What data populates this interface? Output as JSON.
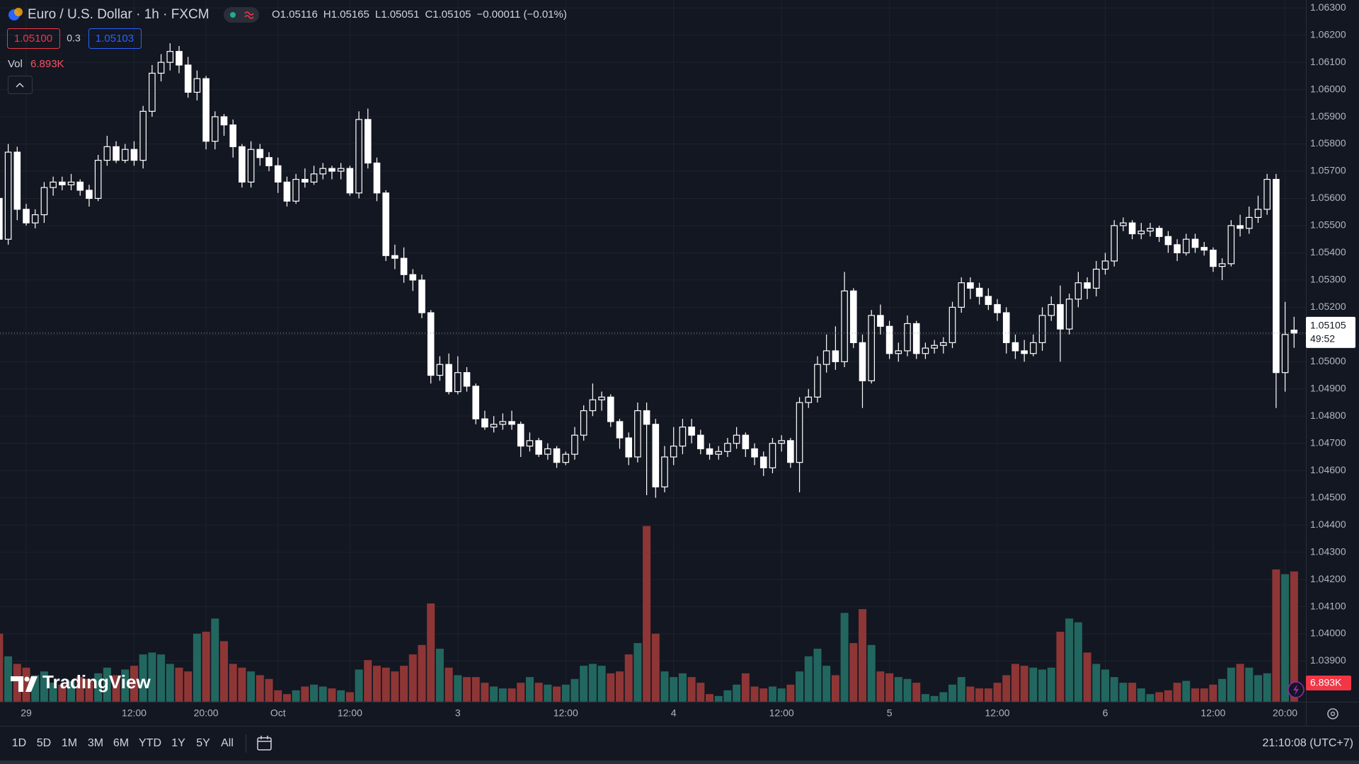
{
  "header": {
    "symbol": "Euro / U.S. Dollar · 1h · FXCM",
    "ohlc_prefixes": [
      "O",
      "H",
      "L",
      "C"
    ],
    "change": "−0.00011 (−0.01%)",
    "bid": "1.05100",
    "spread": "0.3",
    "ask": "1.05103",
    "countdown": "49:52"
  },
  "volume_legend": {
    "label": "Vol",
    "value": "6.893K"
  },
  "watermark": "TradingView",
  "toolbar": {
    "ranges": [
      "1D",
      "5D",
      "1M",
      "3M",
      "6M",
      "YTD",
      "1Y",
      "5Y",
      "All"
    ],
    "clock": "21:10:08 (UTC+7)"
  },
  "chart_data": {
    "type": "candlestick",
    "categories": [
      null,
      null,
      null,
      "29",
      null,
      null,
      null,
      null,
      null,
      null,
      null,
      null,
      null,
      null,
      null,
      "12:00",
      null,
      null,
      null,
      null,
      null,
      null,
      null,
      "20:00",
      null,
      null,
      null,
      null,
      null,
      null,
      null,
      "Oct",
      null,
      null,
      null,
      null,
      null,
      null,
      null,
      "12:00",
      null,
      null,
      null,
      null,
      null,
      null,
      null,
      null,
      null,
      null,
      null,
      "3",
      null,
      null,
      null,
      null,
      null,
      null,
      null,
      null,
      null,
      null,
      null,
      "12:00",
      null,
      null,
      null,
      null,
      null,
      null,
      null,
      null,
      null,
      null,
      null,
      "4",
      null,
      null,
      null,
      null,
      null,
      null,
      null,
      null,
      null,
      null,
      null,
      "12:00",
      null,
      null,
      null,
      null,
      null,
      null,
      null,
      null,
      null,
      null,
      null,
      "5",
      null,
      null,
      null,
      null,
      null,
      null,
      null,
      null,
      null,
      null,
      null,
      "12:00",
      null,
      null,
      null,
      null,
      null,
      null,
      null,
      null,
      null,
      null,
      null,
      "6",
      null,
      null,
      null,
      null,
      null,
      null,
      null,
      null,
      null,
      null,
      null,
      "12:00",
      null,
      null,
      null,
      null,
      null,
      null,
      null,
      "20:00",
      null
    ],
    "open": [
      1.056,
      1.0545,
      1.0577,
      1.0556,
      1.0551,
      1.0554,
      1.0564,
      1.0566,
      1.0565,
      1.0566,
      1.0563,
      1.056,
      1.0574,
      1.0579,
      1.0574,
      1.0578,
      1.0574,
      1.0592,
      1.0606,
      1.061,
      1.0614,
      1.0609,
      1.0599,
      1.0604,
      1.0581,
      1.059,
      1.0587,
      1.0579,
      1.0566,
      1.0578,
      1.0575,
      1.0572,
      1.0566,
      1.0559,
      1.0567,
      1.0566,
      1.0569,
      1.0571,
      1.057,
      1.0571,
      1.0562,
      1.0589,
      1.0573,
      1.0562,
      1.0539,
      1.0538,
      1.0532,
      1.053,
      1.0518,
      1.0495,
      1.0499,
      1.0489,
      1.0496,
      1.0491,
      1.0479,
      1.0476,
      1.0477,
      1.0478,
      1.0477,
      1.0469,
      1.0471,
      1.0466,
      1.0468,
      1.0463,
      1.0466,
      1.0473,
      1.0482,
      1.0486,
      1.0487,
      1.0478,
      1.0472,
      1.0465,
      1.0482,
      1.0477,
      1.0454,
      1.0465,
      1.0469,
      1.0476,
      1.0473,
      1.0468,
      1.0466,
      1.0467,
      1.047,
      1.0473,
      1.0468,
      1.0465,
      1.0461,
      1.047,
      1.0471,
      1.0463,
      1.0485,
      1.0487,
      1.0499,
      1.0504,
      1.05,
      1.0526,
      1.0507,
      1.0493,
      1.0517,
      1.0513,
      1.0503,
      1.0504,
      1.0514,
      1.0503,
      1.0505,
      1.0506,
      1.0507,
      1.052,
      1.0529,
      1.0527,
      1.0524,
      1.0521,
      1.0518,
      1.0507,
      1.0504,
      1.0503,
      1.0507,
      1.0517,
      1.0521,
      1.0512,
      1.0523,
      1.0529,
      1.0527,
      1.0534,
      1.0537,
      1.055,
      1.0551,
      1.0547,
      1.0548,
      1.0549,
      1.0546,
      1.0543,
      1.054,
      1.0545,
      1.0542,
      1.0541,
      1.0535,
      1.0536,
      1.055,
      1.0549,
      1.0553,
      1.0556,
      1.0567,
      1.0496,
      1.05116
    ],
    "high": [
      1.0563,
      1.058,
      1.0579,
      1.0558,
      1.0556,
      1.0566,
      1.0568,
      1.0568,
      1.0569,
      1.0567,
      1.0565,
      1.0576,
      1.0583,
      1.0581,
      1.058,
      1.0581,
      1.0594,
      1.0609,
      1.0613,
      1.0617,
      1.0616,
      1.0612,
      1.0607,
      1.0605,
      1.0592,
      1.0591,
      1.0589,
      1.058,
      1.0581,
      1.058,
      1.0577,
      1.0575,
      1.0568,
      1.0569,
      1.0571,
      1.0572,
      1.0573,
      1.0572,
      1.0573,
      1.0572,
      1.0592,
      1.0593,
      1.0575,
      1.0563,
      1.0543,
      1.0542,
      1.0534,
      1.0532,
      1.0519,
      1.0502,
      1.0503,
      1.0502,
      1.0498,
      1.0492,
      1.0482,
      1.048,
      1.0481,
      1.0482,
      1.0478,
      1.0474,
      1.0472,
      1.047,
      1.0469,
      1.0467,
      1.0476,
      1.0484,
      1.0492,
      1.0489,
      1.0488,
      1.0479,
      1.0474,
      1.0485,
      1.0485,
      1.0479,
      1.0469,
      1.0476,
      1.0479,
      1.0479,
      1.0475,
      1.047,
      1.0469,
      1.0472,
      1.0476,
      1.0474,
      1.047,
      1.0467,
      1.0472,
      1.0473,
      1.0472,
      1.0487,
      1.049,
      1.0502,
      1.051,
      1.0513,
      1.0533,
      1.0527,
      1.051,
      1.0519,
      1.0521,
      1.0515,
      1.0507,
      1.0517,
      1.0515,
      1.0507,
      1.0508,
      1.0509,
      1.0522,
      1.0531,
      1.0531,
      1.0529,
      1.0527,
      1.0523,
      1.052,
      1.051,
      1.0508,
      1.051,
      1.052,
      1.0524,
      1.0528,
      1.0525,
      1.0533,
      1.0531,
      1.0537,
      1.054,
      1.0552,
      1.0553,
      1.0552,
      1.0551,
      1.0551,
      1.055,
      1.0548,
      1.0545,
      1.0547,
      1.0547,
      1.0544,
      1.0542,
      1.0538,
      1.0552,
      1.0554,
      1.0557,
      1.0561,
      1.0569,
      1.0569,
      1.0522,
      1.05165
    ],
    "low": [
      1.0541,
      1.0543,
      1.0552,
      1.055,
      1.0549,
      1.0551,
      1.0561,
      1.0563,
      1.0563,
      1.0561,
      1.0557,
      1.0559,
      1.0572,
      1.0573,
      1.0573,
      1.0572,
      1.0571,
      1.059,
      1.0603,
      1.0607,
      1.0606,
      1.0597,
      1.0596,
      1.0578,
      1.0578,
      1.0583,
      1.0575,
      1.0564,
      1.0564,
      1.0572,
      1.057,
      1.0562,
      1.0557,
      1.0558,
      1.0564,
      1.0565,
      1.0567,
      1.0567,
      1.0567,
      1.0561,
      1.056,
      1.0571,
      1.0559,
      1.0537,
      1.0534,
      1.0529,
      1.0526,
      1.0516,
      1.0492,
      1.0493,
      1.0488,
      1.0488,
      1.0489,
      1.0477,
      1.0475,
      1.0474,
      1.0475,
      1.0475,
      1.0465,
      1.0467,
      1.0465,
      1.0464,
      1.0461,
      1.0462,
      1.0464,
      1.0471,
      1.048,
      1.0482,
      1.0476,
      1.0468,
      1.0462,
      1.0463,
      1.0451,
      1.045,
      1.0452,
      1.0462,
      1.0466,
      1.047,
      1.0466,
      1.0464,
      1.0464,
      1.0465,
      1.0468,
      1.0465,
      1.0462,
      1.0458,
      1.0459,
      1.0467,
      1.0461,
      1.0452,
      1.0483,
      1.0485,
      1.0496,
      1.0497,
      1.0498,
      1.0505,
      1.0483,
      1.0492,
      1.051,
      1.0501,
      1.05,
      1.0502,
      1.0501,
      1.0501,
      1.0503,
      1.0503,
      1.0505,
      1.0518,
      1.0523,
      1.0521,
      1.0519,
      1.0515,
      1.0503,
      1.0501,
      1.05,
      1.0502,
      1.0504,
      1.0515,
      1.05,
      1.051,
      1.052,
      1.0523,
      1.0524,
      1.0532,
      1.0535,
      1.0548,
      1.0545,
      1.0545,
      1.0546,
      1.0544,
      1.054,
      1.0537,
      1.0539,
      1.054,
      1.0539,
      1.0533,
      1.053,
      1.0535,
      1.0546,
      1.0547,
      1.0551,
      1.0554,
      1.0483,
      1.0489,
      1.05051
    ],
    "close": [
      1.0545,
      1.0577,
      1.0556,
      1.0551,
      1.0554,
      1.0564,
      1.0566,
      1.0565,
      1.0566,
      1.0563,
      1.056,
      1.0574,
      1.0579,
      1.0574,
      1.0578,
      1.0574,
      1.0592,
      1.0606,
      1.061,
      1.0614,
      1.0609,
      1.0599,
      1.0604,
      1.0581,
      1.059,
      1.0587,
      1.0579,
      1.0566,
      1.0578,
      1.0575,
      1.0572,
      1.0566,
      1.0559,
      1.0567,
      1.0566,
      1.0569,
      1.0571,
      1.057,
      1.0571,
      1.0562,
      1.0589,
      1.0573,
      1.0562,
      1.0539,
      1.0538,
      1.0532,
      1.053,
      1.0518,
      1.0495,
      1.0499,
      1.0489,
      1.0496,
      1.0491,
      1.0479,
      1.0476,
      1.0477,
      1.0478,
      1.0477,
      1.0469,
      1.0471,
      1.0466,
      1.0468,
      1.0463,
      1.0466,
      1.0473,
      1.0482,
      1.0486,
      1.0487,
      1.0478,
      1.0472,
      1.0465,
      1.0482,
      1.0477,
      1.0454,
      1.0465,
      1.0469,
      1.0476,
      1.0473,
      1.0468,
      1.0466,
      1.0467,
      1.047,
      1.0473,
      1.0468,
      1.0465,
      1.0461,
      1.047,
      1.0471,
      1.0463,
      1.0485,
      1.0487,
      1.0499,
      1.0504,
      1.05,
      1.0526,
      1.0507,
      1.0493,
      1.0517,
      1.0513,
      1.0503,
      1.0504,
      1.0514,
      1.0503,
      1.0505,
      1.0506,
      1.0507,
      1.052,
      1.0529,
      1.0527,
      1.0524,
      1.0521,
      1.0518,
      1.0507,
      1.0504,
      1.0503,
      1.0507,
      1.0517,
      1.0521,
      1.0512,
      1.0523,
      1.0529,
      1.0527,
      1.0534,
      1.0537,
      1.055,
      1.0551,
      1.0547,
      1.0548,
      1.0549,
      1.0546,
      1.0543,
      1.054,
      1.0545,
      1.0542,
      1.0541,
      1.0535,
      1.0536,
      1.055,
      1.0549,
      1.0553,
      1.0556,
      1.0567,
      1.0496,
      1.051,
      1.05105
    ],
    "volume": [
      3.6,
      2.4,
      2.0,
      1.8,
      1.4,
      1.6,
      1.0,
      0.9,
      1.1,
      1.3,
      1.2,
      1.5,
      1.8,
      1.4,
      1.7,
      1.9,
      2.5,
      2.6,
      2.5,
      2.0,
      1.8,
      1.6,
      3.6,
      3.7,
      4.4,
      3.2,
      2.0,
      1.8,
      1.6,
      1.4,
      1.2,
      0.6,
      0.4,
      0.6,
      0.8,
      0.9,
      0.8,
      0.7,
      0.6,
      0.5,
      1.7,
      2.2,
      1.9,
      1.8,
      1.6,
      1.9,
      2.5,
      3.0,
      5.2,
      2.8,
      1.8,
      1.4,
      1.3,
      1.3,
      1.0,
      0.8,
      0.7,
      0.7,
      1.0,
      1.3,
      1.0,
      0.9,
      0.8,
      0.9,
      1.2,
      1.9,
      2.0,
      1.9,
      1.5,
      1.6,
      2.5,
      3.1,
      9.3,
      3.6,
      1.6,
      1.3,
      1.5,
      1.3,
      1.0,
      0.4,
      0.3,
      0.6,
      0.9,
      1.5,
      0.8,
      0.7,
      0.8,
      0.7,
      0.9,
      1.6,
      2.4,
      2.8,
      1.9,
      1.4,
      4.7,
      3.1,
      4.9,
      3.0,
      1.6,
      1.5,
      1.3,
      1.2,
      1.0,
      0.4,
      0.3,
      0.5,
      0.9,
      1.3,
      0.8,
      0.7,
      0.7,
      1.0,
      1.4,
      2.0,
      1.9,
      1.8,
      1.7,
      1.8,
      3.7,
      4.4,
      4.2,
      2.6,
      2.0,
      1.7,
      1.3,
      1.0,
      1.0,
      0.7,
      0.4,
      0.5,
      0.6,
      1.0,
      1.1,
      0.7,
      0.7,
      0.9,
      1.2,
      1.8,
      2.0,
      1.8,
      1.4,
      1.5,
      7.0,
      6.75,
      6.893
    ],
    "ylim": [
      1.03751,
      1.06329
    ],
    "yticks": [
      {
        "value": 1.063,
        "label": "1.06300"
      },
      {
        "value": 1.062,
        "label": "1.06200"
      },
      {
        "value": 1.061,
        "label": "1.06100"
      },
      {
        "value": 1.06,
        "label": "1.06000"
      },
      {
        "value": 1.059,
        "label": "1.05900"
      },
      {
        "value": 1.058,
        "label": "1.05800"
      },
      {
        "value": 1.057,
        "label": "1.05700"
      },
      {
        "value": 1.056,
        "label": "1.05600"
      },
      {
        "value": 1.055,
        "label": "1.05500"
      },
      {
        "value": 1.054,
        "label": "1.05400"
      },
      {
        "value": 1.053,
        "label": "1.05300"
      },
      {
        "value": 1.052,
        "label": "1.05200"
      },
      {
        "value": 1.051,
        "label": "1.05100"
      },
      {
        "value": 1.05,
        "label": "1.05000"
      },
      {
        "value": 1.049,
        "label": "1.04900"
      },
      {
        "value": 1.048,
        "label": "1.04800"
      },
      {
        "value": 1.047,
        "label": "1.04700"
      },
      {
        "value": 1.046,
        "label": "1.04600"
      },
      {
        "value": 1.045,
        "label": "1.04500"
      },
      {
        "value": 1.044,
        "label": "1.04400"
      },
      {
        "value": 1.043,
        "label": "1.04300"
      },
      {
        "value": 1.042,
        "label": "1.04200"
      },
      {
        "value": 1.041,
        "label": "1.04100"
      },
      {
        "value": 1.04,
        "label": "1.04000"
      },
      {
        "value": 1.039,
        "label": "1.03900"
      }
    ],
    "grid": true,
    "up_fill": "#131722",
    "down_fill": "#ffffff",
    "wick_color": "#ffffff",
    "volume_up_color": "#22675f",
    "volume_down_color": "#8e3636"
  }
}
